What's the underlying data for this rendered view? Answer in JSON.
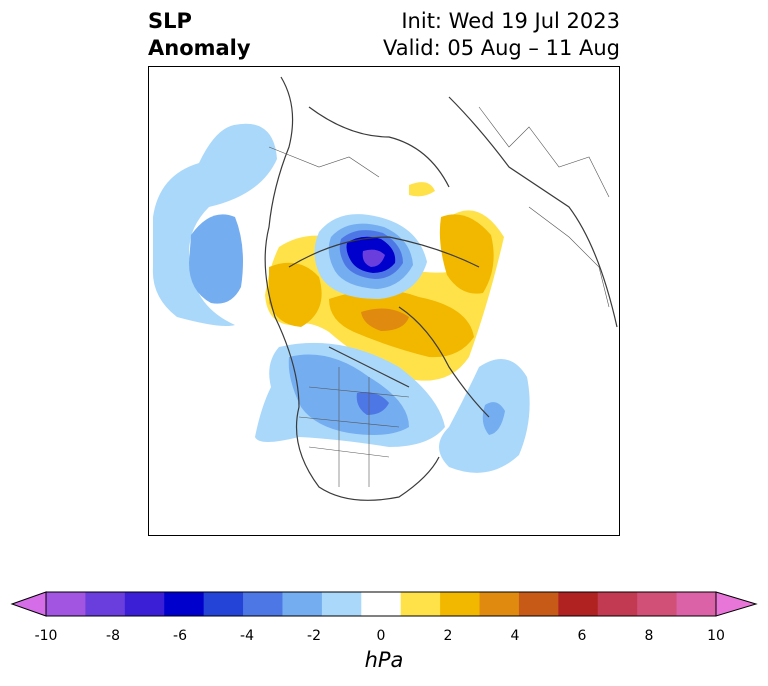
{
  "title": {
    "left_line1": "SLP",
    "left_line2": "Anomaly",
    "right_line1": "Init: Wed 19 Jul 2023",
    "right_line2": "Valid: 05 Aug – 11 Aug"
  },
  "colorbar": {
    "unit": "hPa",
    "tick_labels": [
      "-10",
      "-8",
      "-6",
      "-4",
      "-2",
      "0",
      "2",
      "4",
      "6",
      "8",
      "10"
    ],
    "colors": [
      "#d66de8",
      "#a155e0",
      "#6a3ddd",
      "#3b1fd6",
      "#0000cc",
      "#2444d8",
      "#4e77e6",
      "#74adf0",
      "#aad8fa",
      "#ffffff",
      "#ffe24a",
      "#f2b800",
      "#e08a10",
      "#c85a18",
      "#b02222",
      "#c23a52",
      "#d05078",
      "#dc62a8",
      "#e876d8"
    ]
  },
  "map": {
    "projection": "north-polar-stereographic",
    "features": [
      "coastlines",
      "country-borders",
      "us-state-borders",
      "canadian-provinces"
    ],
    "anomalies": [
      {
        "name": "arctic-low",
        "sign": "negative",
        "min_hpa": -10
      },
      {
        "name": "greenland-high",
        "sign": "positive",
        "max_hpa": 4
      },
      {
        "name": "scandinavia-high",
        "sign": "positive",
        "max_hpa": 4
      },
      {
        "name": "north-america-low",
        "sign": "negative",
        "min_hpa": -4
      },
      {
        "name": "pacific-low",
        "sign": "negative",
        "min_hpa": -3
      },
      {
        "name": "atlantic-low",
        "sign": "negative",
        "min_hpa": -3
      }
    ]
  }
}
